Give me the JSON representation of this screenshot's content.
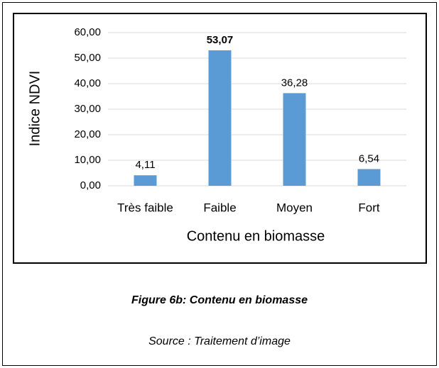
{
  "chart_data": {
    "type": "bar",
    "categories": [
      "Très faible",
      "Faible",
      "Moyen",
      "Fort"
    ],
    "values": [
      4.11,
      53.07,
      36.28,
      6.54
    ],
    "value_labels": [
      "4,11",
      "53,07",
      "36,28",
      "6,54"
    ],
    "bold_value_label": 1,
    "color": "#5b9bd5",
    "xlabel": "Contenu en biomasse",
    "ylabel": "Indice NDVI",
    "ylim": [
      0,
      60
    ],
    "yticks": [
      {
        "value": 0,
        "label": "0,00"
      },
      {
        "value": 10,
        "label": "10,00"
      },
      {
        "value": 20,
        "label": "20,00"
      },
      {
        "value": 30,
        "label": "30,00"
      },
      {
        "value": 40,
        "label": "40,00"
      },
      {
        "value": 50,
        "label": "50,00"
      },
      {
        "value": 60,
        "label": "60,00"
      }
    ],
    "grid": true
  },
  "figure": {
    "caption": "Figure 6b: Contenu en biomasse",
    "source": "Source : Traitement d’image"
  }
}
